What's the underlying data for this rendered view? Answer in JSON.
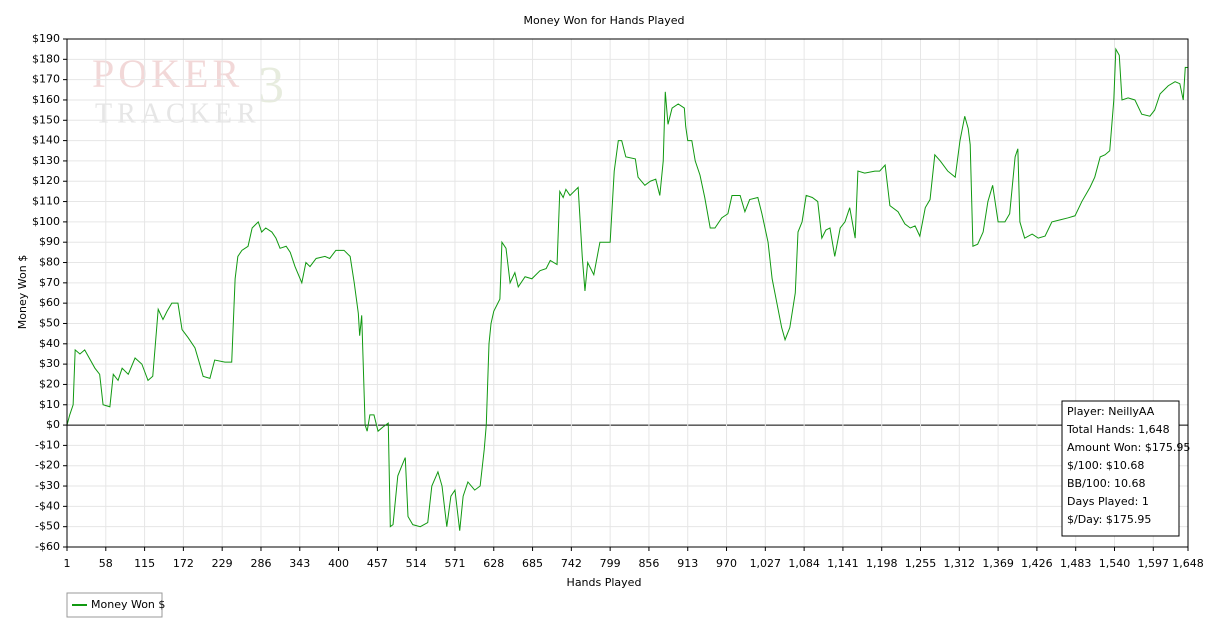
{
  "chart_data": {
    "type": "line",
    "title": "Money Won for Hands Played",
    "x_label": "Hands Played",
    "y_label": "Money Won $",
    "watermark": [
      "POKER",
      "3",
      "TRACKER"
    ],
    "grid": true,
    "legend": "bottom-left",
    "x": [
      1,
      5,
      10,
      13,
      20,
      27,
      42,
      49,
      54,
      64,
      69,
      76,
      82,
      91,
      101,
      111,
      120,
      127,
      135,
      142,
      148,
      155,
      164,
      170,
      179,
      189,
      196,
      201,
      211,
      218,
      233,
      243,
      248,
      252,
      258,
      267,
      273,
      282,
      287,
      293,
      302,
      308,
      314,
      323,
      329,
      336,
      346,
      352,
      358,
      367,
      380,
      387,
      396,
      408,
      417,
      423,
      429,
      431,
      434,
      439,
      442,
      446,
      452,
      458,
      465,
      473,
      476,
      480,
      487,
      493,
      498,
      502,
      509,
      520,
      531,
      537,
      546,
      552,
      559,
      565,
      571,
      578,
      583,
      590,
      600,
      608,
      614,
      617,
      621,
      624,
      628,
      637,
      640,
      646,
      652,
      659,
      664,
      674,
      684,
      696,
      705,
      711,
      721,
      725,
      730,
      734,
      740,
      752,
      758,
      762,
      766,
      775,
      784,
      799,
      805,
      811,
      816,
      822,
      836,
      840,
      850,
      858,
      866,
      872,
      877,
      880,
      884,
      890,
      899,
      908,
      910,
      913,
      919,
      924,
      931,
      938,
      946,
      953,
      963,
      972,
      978,
      990,
      997,
      1004,
      1016,
      1022,
      1031,
      1037,
      1044,
      1051,
      1056,
      1063,
      1071,
      1075,
      1081,
      1087,
      1096,
      1104,
      1110,
      1116,
      1122,
      1129,
      1137,
      1144,
      1151,
      1159,
      1163,
      1173,
      1188,
      1195,
      1203,
      1210,
      1222,
      1232,
      1240,
      1247,
      1254,
      1262,
      1269,
      1276,
      1284,
      1295,
      1306,
      1313,
      1320,
      1325,
      1328,
      1332,
      1339,
      1347,
      1354,
      1361,
      1369,
      1379,
      1386,
      1394,
      1398,
      1401,
      1408,
      1419,
      1428,
      1438,
      1448,
      1460,
      1472,
      1482,
      1492,
      1504,
      1511,
      1519,
      1526,
      1533,
      1539,
      1542,
      1547,
      1551,
      1560,
      1570,
      1580,
      1592,
      1599,
      1607,
      1619,
      1629,
      1636,
      1641,
      1644,
      1648
    ],
    "series": [
      {
        "name": "Money Won $",
        "color": "#119911",
        "values": [
          0,
          5,
          10,
          37,
          35,
          37,
          28,
          25,
          10,
          9,
          25,
          22,
          28,
          25,
          33,
          30,
          22,
          24,
          57,
          52,
          56,
          60,
          60,
          47,
          43,
          38,
          30,
          24,
          23,
          32,
          31,
          31,
          72,
          83,
          86,
          88,
          97,
          100,
          95,
          97,
          95,
          92,
          87,
          88,
          85,
          78,
          70,
          80,
          78,
          82,
          83,
          82,
          86,
          86,
          83,
          70,
          55,
          44,
          54,
          0,
          -3,
          5,
          5,
          -3,
          -1,
          1,
          -50,
          -49,
          -25,
          -20,
          -16,
          -45,
          -49,
          -50,
          -48,
          -30,
          -23,
          -30,
          -50,
          -35,
          -32,
          -52,
          -35,
          -28,
          -32,
          -30,
          -12,
          0,
          40,
          50,
          56,
          62,
          90,
          87,
          70,
          75,
          68,
          73,
          72,
          76,
          77,
          81,
          79,
          115,
          112,
          116,
          113,
          117,
          83,
          66,
          80,
          74,
          90,
          90,
          125,
          140,
          140,
          132,
          131,
          122,
          118,
          120,
          121,
          113,
          130,
          164,
          148,
          156,
          158,
          156,
          147,
          140,
          140,
          130,
          123,
          112,
          97,
          97,
          102,
          104,
          113,
          113,
          105,
          111,
          112,
          104,
          90,
          72,
          60,
          48,
          42,
          48,
          65,
          95,
          100,
          113,
          112,
          110,
          92,
          96,
          97,
          83,
          97,
          100,
          107,
          92,
          125,
          124,
          125,
          125,
          128,
          108,
          105,
          99,
          97,
          98,
          93,
          107,
          111,
          133,
          130,
          125,
          122,
          140,
          152,
          146,
          138,
          88,
          89,
          95,
          110,
          118,
          100,
          100,
          104,
          132,
          136,
          100,
          92,
          94,
          92,
          93,
          100,
          101,
          102,
          103,
          110,
          117,
          122,
          132,
          133,
          135,
          160,
          185,
          182,
          160,
          161,
          160,
          153,
          152,
          155,
          163,
          167,
          169,
          168,
          160,
          176,
          175.95
        ]
      }
    ],
    "xlim": [
      1,
      1648
    ],
    "xticks": [
      1,
      58,
      115,
      172,
      229,
      286,
      343,
      400,
      457,
      514,
      571,
      628,
      685,
      742,
      799,
      856,
      913,
      970,
      {
        "value": 1027,
        "label": "1,027"
      },
      {
        "value": 1084,
        "label": "1,084"
      },
      {
        "value": 1141,
        "label": "1,141"
      },
      {
        "value": 1198,
        "label": "1,198"
      },
      {
        "value": 1255,
        "label": "1,255"
      },
      {
        "value": 1312,
        "label": "1,312"
      },
      {
        "value": 1369,
        "label": "1,369"
      },
      {
        "value": 1426,
        "label": "1,426"
      },
      {
        "value": 1483,
        "label": "1,483"
      },
      {
        "value": 1540,
        "label": "1,540"
      },
      {
        "value": 1597,
        "label": "1,597"
      },
      {
        "value": 1648,
        "label": "1,648"
      }
    ],
    "ylim": [
      -60,
      190
    ],
    "yticks": [
      {
        "value": -60,
        "label": "-$60"
      },
      {
        "value": -50,
        "label": "-$50"
      },
      {
        "value": -40,
        "label": "-$40"
      },
      {
        "value": -30,
        "label": "-$30"
      },
      {
        "value": -20,
        "label": "-$20"
      },
      {
        "value": -10,
        "label": "-$10"
      },
      {
        "value": 0,
        "label": "$0"
      },
      {
        "value": 10,
        "label": "$10"
      },
      {
        "value": 20,
        "label": "$20"
      },
      {
        "value": 30,
        "label": "$30"
      },
      {
        "value": 40,
        "label": "$40"
      },
      {
        "value": 50,
        "label": "$50"
      },
      {
        "value": 60,
        "label": "$60"
      },
      {
        "value": 70,
        "label": "$70"
      },
      {
        "value": 80,
        "label": "$80"
      },
      {
        "value": 90,
        "label": "$90"
      },
      {
        "value": 100,
        "label": "$100"
      },
      {
        "value": 110,
        "label": "$110"
      },
      {
        "value": 120,
        "label": "$120"
      },
      {
        "value": 130,
        "label": "$130"
      },
      {
        "value": 140,
        "label": "$140"
      },
      {
        "value": 150,
        "label": "$150"
      },
      {
        "value": 160,
        "label": "$160"
      },
      {
        "value": 170,
        "label": "$170"
      },
      {
        "value": 180,
        "label": "$180"
      },
      {
        "value": 190,
        "label": "$190"
      }
    ],
    "info_box": [
      "Player: NeillyAA",
      "Total Hands: 1,648",
      "Amount Won: $175.95",
      "$/100: $10.68",
      "BB/100: 10.68",
      "Days Played: 1",
      "$/Day: $175.95"
    ]
  }
}
